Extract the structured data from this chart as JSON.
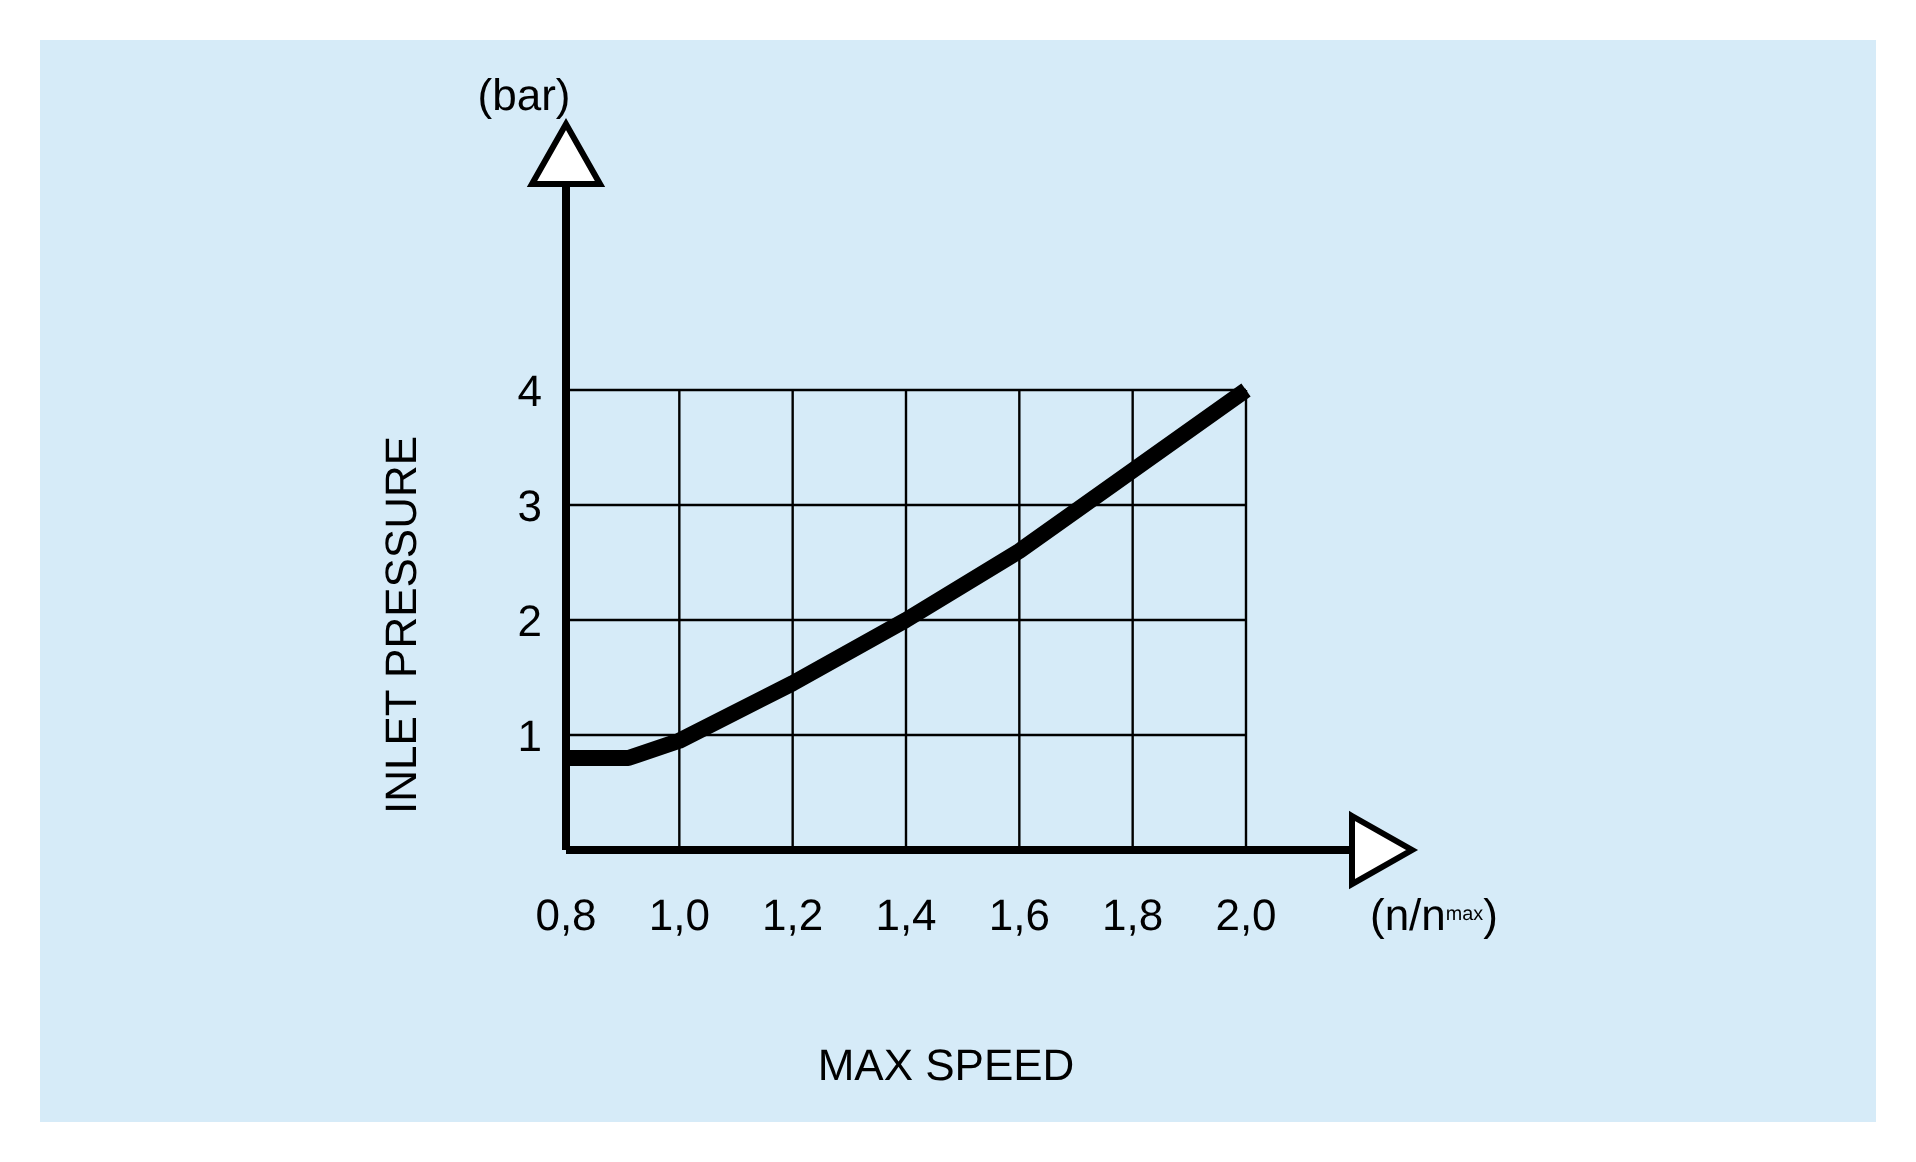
{
  "chart_data": {
    "type": "line",
    "xlabel": "MAX SPEED",
    "ylabel": "INLET PRESSURE",
    "annotations": [
      "(bar)",
      "(n/n$^{max}$)"
    ],
    "x": [
      0.8,
      0.91,
      1.0,
      1.2,
      1.4,
      1.6,
      1.8,
      2.0
    ],
    "series": [
      {
        "color": "#000000",
        "values": [
          0.8,
          0.8,
          0.95,
          1.45,
          2.0,
          2.6,
          3.3,
          4.0
        ]
      }
    ],
    "xlim": [
      0.8,
      2.0
    ],
    "ylim": [
      0,
      4
    ],
    "xticks": [
      {
        "value": 0.8,
        "label": "0,8"
      },
      {
        "value": 1.0,
        "label": "1,0"
      },
      {
        "value": 1.2,
        "label": "1,2"
      },
      {
        "value": 1.4,
        "label": "1,4"
      },
      {
        "value": 1.6,
        "label": "1,6"
      },
      {
        "value": 1.8,
        "label": "1,8"
      },
      {
        "value": 2.0,
        "label": "2,0"
      }
    ],
    "yticks": [
      {
        "value": 0,
        "label": null
      },
      1,
      2,
      3,
      4
    ],
    "grid": true,
    "marker": "none",
    "line_style": "solid"
  }
}
